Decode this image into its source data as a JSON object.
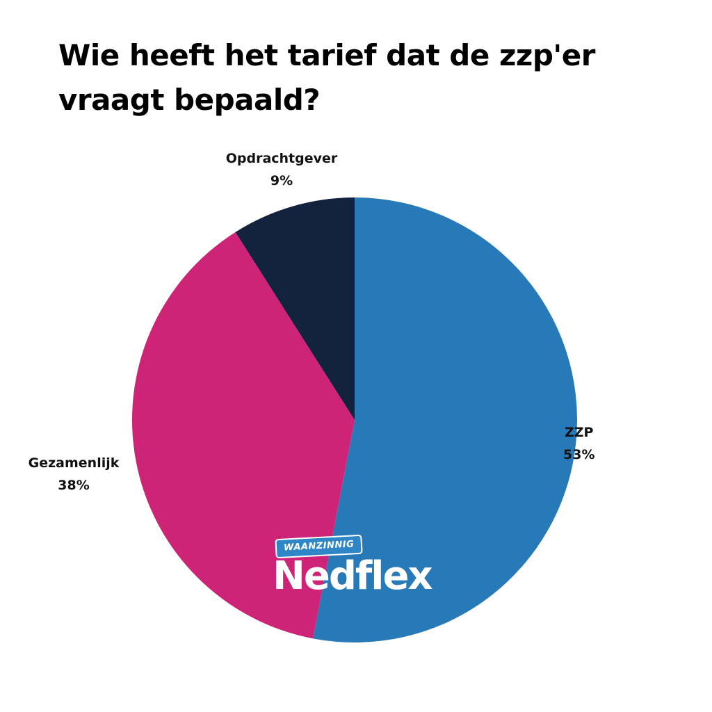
{
  "chart_data": {
    "type": "pie",
    "title": "Wie heeft het tarief dat de zzp'er vraagt bepaald?",
    "slices": [
      {
        "label": "ZZP",
        "value": 53,
        "value_label": "53%",
        "color": "#277ab7"
      },
      {
        "label": "Gezamenlijk",
        "value": 38,
        "value_label": "38%",
        "color": "#cd2478"
      },
      {
        "label": "Opdrachtgever",
        "value": 9,
        "value_label": "9%",
        "color": "#14233d"
      }
    ],
    "start_angle": "12 o'clock",
    "direction": "clockwise",
    "legend": "none"
  },
  "logo": {
    "badge_text": "WAANZINNIG",
    "wordmark": "Nedflex"
  }
}
